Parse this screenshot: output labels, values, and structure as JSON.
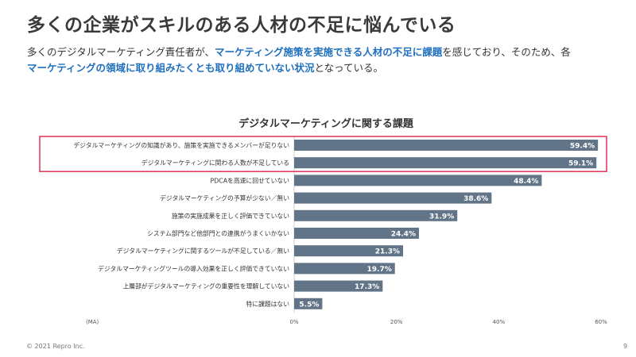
{
  "page": {
    "title": "多くの企業がスキルのある人材の不足に悩んでいる",
    "lead_part1": "多くのデジタルマーケティング責任者が、",
    "lead_highlight1": "マーケティング施策を実施できる人材の不足に課題",
    "lead_part2": "を感じており、そのため、各",
    "lead_highlight2": "マーケティングの領域に取り組みたくとも取り組めていない状況",
    "lead_part3": "となっている。",
    "copyright": "© 2021 Repro Inc.",
    "page_number": "9"
  },
  "colors": {
    "bar": "#627487",
    "highlight_box": "#e0315a",
    "accent_text": "#1f6fbf"
  },
  "chart_data": {
    "type": "bar",
    "orientation": "horizontal",
    "title": "デジタルマーケティングに関する課題",
    "xlabel": "(MA)",
    "xlim": [
      0,
      60
    ],
    "ticks": [
      0,
      20,
      40,
      60
    ],
    "tick_labels": [
      "0%",
      "20%",
      "40%",
      "60%"
    ],
    "categories": [
      "デジタルマーケティングの知識があり、施策を実施できるメンバーが足りない",
      "デジタルマーケティングに関わる人数が不足している",
      "PDCAを高速に回せていない",
      "デジタルマーケティングの予算が少ない／無い",
      "施策の実施成果を正しく評価できていない",
      "システム部門など他部門との連携がうまくいかない",
      "デジタルマーケティングに関するツールが不足している／無い",
      "デジタルマーケティングツールの導入効果を正しく評価できていない",
      "上層部がデジタルマーケティングの重要性を理解していない",
      "特に課題はない"
    ],
    "values": [
      59.4,
      59.1,
      48.4,
      38.6,
      31.9,
      24.4,
      21.3,
      19.7,
      17.3,
      5.5
    ],
    "value_labels": [
      "59.4%",
      "59.1%",
      "48.4%",
      "38.6%",
      "31.9%",
      "24.4%",
      "21.3%",
      "19.7%",
      "17.3%",
      "5.5%"
    ],
    "highlighted_indices": [
      0,
      1
    ]
  }
}
